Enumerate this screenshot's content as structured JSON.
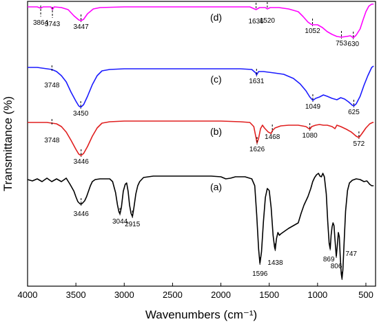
{
  "chart_data": {
    "type": "line",
    "xlabel": "Wavenumbers (cm⁻¹)",
    "ylabel": "Transmittance (%)",
    "xlim": [
      4000,
      400
    ],
    "xticks": [
      "4000",
      "3500",
      "3000",
      "2500",
      "2000",
      "1500",
      "1000",
      "500"
    ],
    "x_reversed": true,
    "grid": false,
    "legend": "none",
    "series": [
      {
        "name": "(d)",
        "color": "#ff00ff",
        "points": [
          [
            4000,
            8
          ],
          [
            3900,
            8
          ],
          [
            3864,
            10
          ],
          [
            3840,
            8
          ],
          [
            3760,
            8
          ],
          [
            3743,
            12
          ],
          [
            3725,
            8
          ],
          [
            3650,
            9
          ],
          [
            3580,
            12
          ],
          [
            3520,
            21
          ],
          [
            3470,
            27
          ],
          [
            3447,
            28
          ],
          [
            3420,
            26
          ],
          [
            3380,
            18
          ],
          [
            3320,
            11
          ],
          [
            3250,
            9
          ],
          [
            3000,
            8
          ],
          [
            2500,
            8
          ],
          [
            2000,
            8
          ],
          [
            1700,
            8
          ],
          [
            1636,
            12
          ],
          [
            1600,
            9
          ],
          [
            1540,
            9
          ],
          [
            1520,
            11
          ],
          [
            1490,
            9
          ],
          [
            1400,
            9
          ],
          [
            1300,
            11
          ],
          [
            1200,
            15
          ],
          [
            1150,
            22
          ],
          [
            1100,
            30
          ],
          [
            1070,
            33
          ],
          [
            1052,
            34
          ],
          [
            1000,
            34
          ],
          [
            950,
            38
          ],
          [
            900,
            44
          ],
          [
            850,
            48
          ],
          [
            800,
            51
          ],
          [
            753,
            52
          ],
          [
            700,
            51
          ],
          [
            660,
            50
          ],
          [
            630,
            53
          ],
          [
            600,
            49
          ],
          [
            560,
            40
          ],
          [
            530,
            27
          ],
          [
            500,
            15
          ],
          [
            470,
            7
          ],
          [
            440,
            4
          ],
          [
            420,
            4
          ]
        ]
      },
      {
        "name": "(c)",
        "color": "#1a1aff",
        "points": [
          [
            4000,
            96
          ],
          [
            3900,
            96
          ],
          [
            3800,
            98
          ],
          [
            3748,
            99
          ],
          [
            3700,
            102
          ],
          [
            3650,
            108
          ],
          [
            3600,
            117
          ],
          [
            3550,
            132
          ],
          [
            3500,
            145
          ],
          [
            3470,
            152
          ],
          [
            3450,
            154
          ],
          [
            3420,
            150
          ],
          [
            3380,
            138
          ],
          [
            3330,
            121
          ],
          [
            3280,
            108
          ],
          [
            3230,
            101
          ],
          [
            3150,
            99
          ],
          [
            3000,
            98
          ],
          [
            2500,
            98
          ],
          [
            2000,
            98
          ],
          [
            1800,
            98
          ],
          [
            1680,
            99
          ],
          [
            1640,
            104
          ],
          [
            1631,
            107
          ],
          [
            1610,
            102
          ],
          [
            1560,
            102
          ],
          [
            1450,
            104
          ],
          [
            1350,
            106
          ],
          [
            1250,
            112
          ],
          [
            1180,
            120
          ],
          [
            1120,
            130
          ],
          [
            1080,
            139
          ],
          [
            1049,
            144
          ],
          [
            1020,
            141
          ],
          [
            980,
            139
          ],
          [
            940,
            136
          ],
          [
            900,
            138
          ],
          [
            850,
            141
          ],
          [
            800,
            143
          ],
          [
            760,
            140
          ],
          [
            720,
            142
          ],
          [
            680,
            146
          ],
          [
            640,
            151
          ],
          [
            625,
            152
          ],
          [
            600,
            149
          ],
          [
            560,
            138
          ],
          [
            520,
            122
          ],
          [
            480,
            108
          ],
          [
            440,
            96
          ],
          [
            420,
            94
          ]
        ]
      },
      {
        "name": "(b)",
        "color": "#e01e1e",
        "points": [
          [
            4000,
            176
          ],
          [
            3900,
            176
          ],
          [
            3800,
            176
          ],
          [
            3748,
            177
          ],
          [
            3700,
            178
          ],
          [
            3650,
            182
          ],
          [
            3600,
            190
          ],
          [
            3550,
            202
          ],
          [
            3500,
            215
          ],
          [
            3470,
            222
          ],
          [
            3446,
            224
          ],
          [
            3420,
            221
          ],
          [
            3380,
            211
          ],
          [
            3330,
            196
          ],
          [
            3280,
            184
          ],
          [
            3230,
            177
          ],
          [
            3150,
            175
          ],
          [
            3000,
            174
          ],
          [
            2500,
            174
          ],
          [
            2000,
            174
          ],
          [
            1800,
            175
          ],
          [
            1700,
            176
          ],
          [
            1660,
            182
          ],
          [
            1640,
            196
          ],
          [
            1626,
            206
          ],
          [
            1610,
            199
          ],
          [
            1590,
            185
          ],
          [
            1570,
            180
          ],
          [
            1550,
            184
          ],
          [
            1510,
            190
          ],
          [
            1480,
            192
          ],
          [
            1468,
            188
          ],
          [
            1440,
            184
          ],
          [
            1380,
            181
          ],
          [
            1300,
            180
          ],
          [
            1200,
            180
          ],
          [
            1120,
            182
          ],
          [
            1080,
            186
          ],
          [
            1060,
            182
          ],
          [
            1020,
            180
          ],
          [
            980,
            179
          ],
          [
            940,
            180
          ],
          [
            900,
            180
          ],
          [
            850,
            182
          ],
          [
            820,
            185
          ],
          [
            800,
            180
          ],
          [
            760,
            182
          ],
          [
            700,
            186
          ],
          [
            650,
            190
          ],
          [
            600,
            196
          ],
          [
            572,
            198
          ],
          [
            540,
            192
          ],
          [
            500,
            184
          ],
          [
            460,
            178
          ],
          [
            430,
            176
          ],
          [
            420,
            176
          ]
        ]
      },
      {
        "name": "(a)",
        "color": "#000000",
        "points": [
          [
            4000,
            259
          ],
          [
            3950,
            261
          ],
          [
            3900,
            258
          ],
          [
            3850,
            262
          ],
          [
            3800,
            257
          ],
          [
            3750,
            262
          ],
          [
            3700,
            258
          ],
          [
            3650,
            262
          ],
          [
            3600,
            257
          ],
          [
            3560,
            266
          ],
          [
            3520,
            276
          ],
          [
            3500,
            284
          ],
          [
            3480,
            291
          ],
          [
            3460,
            294
          ],
          [
            3446,
            295
          ],
          [
            3430,
            293
          ],
          [
            3410,
            290
          ],
          [
            3390,
            284
          ],
          [
            3370,
            276
          ],
          [
            3350,
            268
          ],
          [
            3330,
            262
          ],
          [
            3300,
            259
          ],
          [
            3250,
            258
          ],
          [
            3200,
            258
          ],
          [
            3150,
            258
          ],
          [
            3120,
            262
          ],
          [
            3090,
            278
          ],
          [
            3070,
            296
          ],
          [
            3055,
            306
          ],
          [
            3044,
            309
          ],
          [
            3030,
            300
          ],
          [
            3010,
            276
          ],
          [
            2990,
            266
          ],
          [
            2975,
            264
          ],
          [
            2960,
            276
          ],
          [
            2945,
            296
          ],
          [
            2930,
            308
          ],
          [
            2915,
            313
          ],
          [
            2900,
            300
          ],
          [
            2880,
            280
          ],
          [
            2860,
            268
          ],
          [
            2840,
            262
          ],
          [
            2800,
            256
          ],
          [
            2700,
            254
          ],
          [
            2500,
            254
          ],
          [
            2300,
            254
          ],
          [
            2100,
            254
          ],
          [
            2000,
            255
          ],
          [
            1950,
            258
          ],
          [
            1900,
            257
          ],
          [
            1850,
            255
          ],
          [
            1750,
            255
          ],
          [
            1680,
            258
          ],
          [
            1650,
            268
          ],
          [
            1630,
            310
          ],
          [
            1610,
            360
          ],
          [
            1596,
            381
          ],
          [
            1580,
            364
          ],
          [
            1560,
            320
          ],
          [
            1540,
            285
          ],
          [
            1520,
            272
          ],
          [
            1500,
            275
          ],
          [
            1480,
            300
          ],
          [
            1460,
            340
          ],
          [
            1445,
            357
          ],
          [
            1438,
            361
          ],
          [
            1425,
            345
          ],
          [
            1410,
            336
          ],
          [
            1395,
            340
          ],
          [
            1380,
            338
          ],
          [
            1360,
            336
          ],
          [
            1340,
            334
          ],
          [
            1300,
            330
          ],
          [
            1250,
            326
          ],
          [
            1200,
            322
          ],
          [
            1170,
            308
          ],
          [
            1140,
            296
          ],
          [
            1100,
            284
          ],
          [
            1070,
            272
          ],
          [
            1050,
            262
          ],
          [
            1030,
            256
          ],
          [
            1010,
            252
          ],
          [
            990,
            250
          ],
          [
            975,
            254
          ],
          [
            960,
            255
          ],
          [
            945,
            250
          ],
          [
            930,
            255
          ],
          [
            910,
            280
          ],
          [
            895,
            320
          ],
          [
            880,
            352
          ],
          [
            869,
            360
          ],
          [
            860,
            340
          ],
          [
            850,
            328
          ],
          [
            840,
            322
          ],
          [
            830,
            326
          ],
          [
            820,
            346
          ],
          [
            806,
            371
          ],
          [
            795,
            354
          ],
          [
            785,
            336
          ],
          [
            775,
            342
          ],
          [
            765,
            372
          ],
          [
            755,
            396
          ],
          [
            747,
            403
          ],
          [
            738,
            390
          ],
          [
            725,
            350
          ],
          [
            710,
            305
          ],
          [
            690,
            275
          ],
          [
            670,
            264
          ],
          [
            640,
            260
          ],
          [
            600,
            258
          ],
          [
            560,
            259
          ],
          [
            520,
            262
          ],
          [
            490,
            261
          ],
          [
            460,
            266
          ],
          [
            440,
            268
          ],
          [
            420,
            268
          ]
        ]
      }
    ],
    "annotations": [
      {
        "series": "(d)",
        "x": 3864,
        "label": "3864"
      },
      {
        "series": "(d)",
        "x": 3743,
        "label": "3743"
      },
      {
        "series": "(d)",
        "x": 3447,
        "label": "3447"
      },
      {
        "series": "(d)",
        "x": 1636,
        "label": "1636"
      },
      {
        "series": "(d)",
        "x": 1520,
        "label": "1520"
      },
      {
        "series": "(d)",
        "x": 1052,
        "label": "1052"
      },
      {
        "series": "(d)",
        "x": 753,
        "label": "753"
      },
      {
        "series": "(d)",
        "x": 630,
        "label": "630"
      },
      {
        "series": "(c)",
        "x": 3748,
        "label": "3748"
      },
      {
        "series": "(c)",
        "x": 3450,
        "label": "3450"
      },
      {
        "series": "(c)",
        "x": 1631,
        "label": "1631"
      },
      {
        "series": "(c)",
        "x": 1049,
        "label": "1049"
      },
      {
        "series": "(c)",
        "x": 625,
        "label": "625"
      },
      {
        "series": "(b)",
        "x": 3748,
        "label": "3748"
      },
      {
        "series": "(b)",
        "x": 3446,
        "label": "3446"
      },
      {
        "series": "(b)",
        "x": 1626,
        "label": "1626"
      },
      {
        "series": "(b)",
        "x": 1468,
        "label": "1468"
      },
      {
        "series": "(b)",
        "x": 1080,
        "label": "1080"
      },
      {
        "series": "(b)",
        "x": 572,
        "label": "572"
      },
      {
        "series": "(a)",
        "x": 3446,
        "label": "3446"
      },
      {
        "series": "(a)",
        "x": 3044,
        "label": "3044"
      },
      {
        "series": "(a)",
        "x": 2915,
        "label": "2915"
      },
      {
        "series": "(a)",
        "x": 1596,
        "label": "1596"
      },
      {
        "series": "(a)",
        "x": 1438,
        "label": "1438"
      },
      {
        "series": "(a)",
        "x": 869,
        "label": "869"
      },
      {
        "series": "(a)",
        "x": 806,
        "label": "806"
      },
      {
        "series": "(a)",
        "x": 747,
        "label": "747"
      }
    ]
  }
}
